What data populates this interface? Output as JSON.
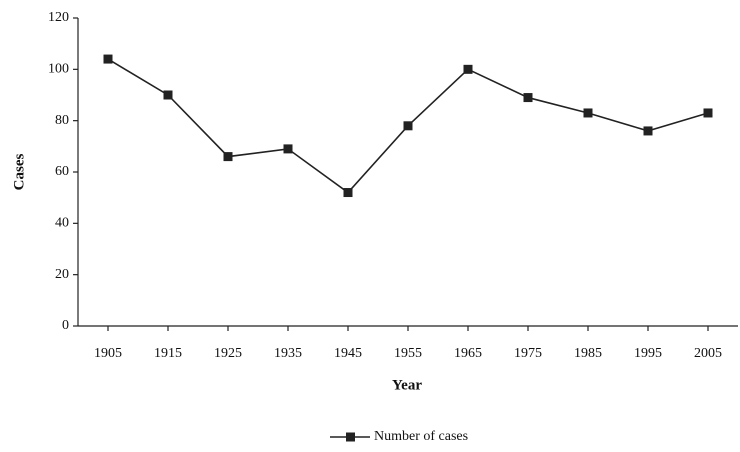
{
  "chart_data": {
    "type": "line",
    "x": [
      1905,
      1915,
      1925,
      1935,
      1945,
      1955,
      1965,
      1975,
      1985,
      1995,
      2005
    ],
    "series": [
      {
        "name": "Number of cases",
        "color": "#222222",
        "values": [
          104,
          90,
          66,
          69,
          52,
          78,
          100,
          89,
          83,
          76,
          83
        ]
      }
    ],
    "xlim": [
      1900,
      2010
    ],
    "xticks": [
      1905,
      1915,
      1925,
      1935,
      1945,
      1955,
      1965,
      1975,
      1985,
      1995,
      2005
    ],
    "ylim": [
      0,
      120
    ],
    "yticks": [
      0,
      20,
      40,
      60,
      80,
      100,
      120
    ],
    "x_label": "Year",
    "y_label": "Cases",
    "legend": "bottom"
  }
}
